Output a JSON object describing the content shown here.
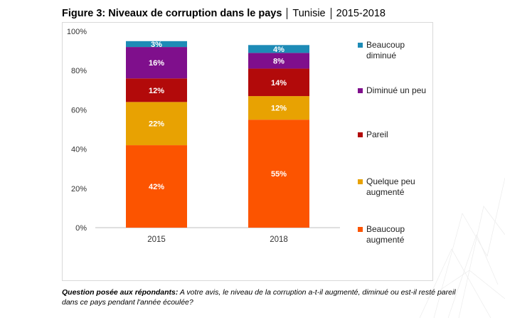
{
  "title": {
    "figure": "Figure 3: Niveaux de corruption dans le pays",
    "country": "Tunisie",
    "years": "2015-2018"
  },
  "footnote": {
    "question_label": "Question posée aux répondants:",
    "question_text": " A votre avis, le niveau de la corruption a-t-il augmenté, diminué ou est-il resté pareil dans ce pays pendant l'année écoulée?"
  },
  "chart_data": {
    "type": "bar",
    "stacked": true,
    "categories": [
      "2015",
      "2018"
    ],
    "series": [
      {
        "name": "Beaucoup augmenté",
        "color": "#fc5400",
        "values": [
          42,
          55
        ],
        "labels": [
          "42%",
          "55%"
        ]
      },
      {
        "name": "Quelque peu augmenté",
        "color": "#e8a202",
        "values": [
          22,
          12
        ],
        "labels": [
          "22%",
          "12%"
        ]
      },
      {
        "name": "Pareil",
        "color": "#b20a0a",
        "values": [
          12,
          14
        ],
        "labels": [
          "12%",
          "14%"
        ]
      },
      {
        "name": "Diminué un peu",
        "color": "#7f0f8c",
        "values": [
          16,
          8
        ],
        "labels": [
          "16%",
          "8%"
        ]
      },
      {
        "name": "Beaucoup diminué",
        "color": "#1d8bb6",
        "values": [
          3,
          4
        ],
        "labels": [
          "3%",
          "4%"
        ]
      }
    ],
    "ylim": [
      0,
      100
    ],
    "yticks": [
      "0%",
      "20%",
      "40%",
      "60%",
      "80%",
      "100%"
    ],
    "legend_position": "right",
    "grid": false
  }
}
